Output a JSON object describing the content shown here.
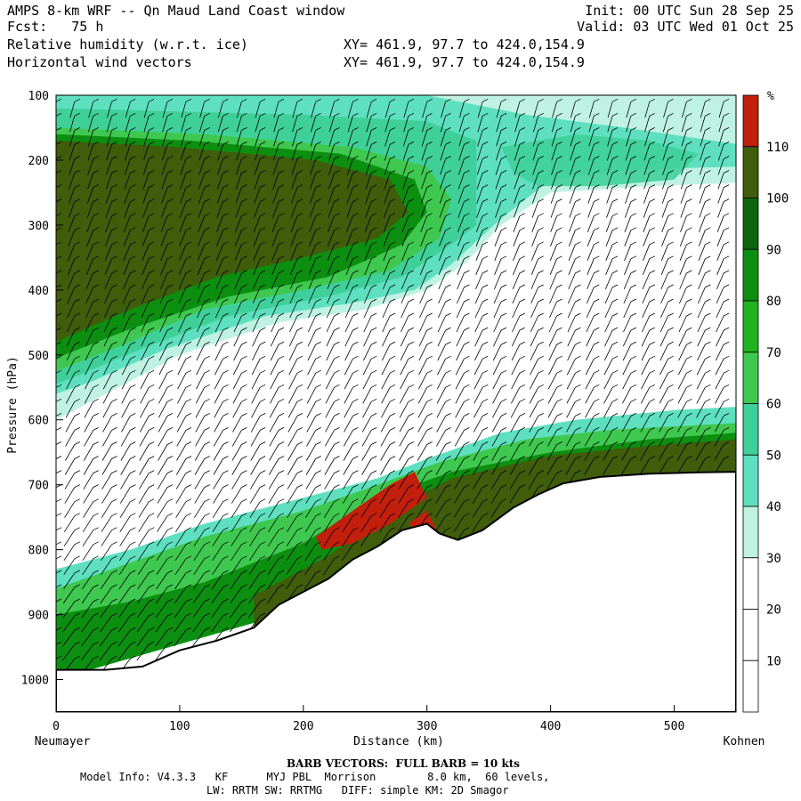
{
  "header": {
    "title": "AMPS 8-km WRF -- Qn Maud Land Coast window",
    "forecast": "Fcst:   75 h",
    "field1": "Relative humidity (w.r.t. ice)",
    "field2": "Horizontal wind vectors",
    "init": "Init: 00 UTC Sun 28 Sep 25",
    "valid": "Valid: 03 UTC Wed 01 Oct 25",
    "xy1": "XY= 461.9, 97.7 to 424.0,154.9",
    "xy2": "XY= 461.9, 97.7 to 424.0,154.9"
  },
  "chart_data": {
    "type": "heatmap",
    "title": "Relative humidity (w.r.t. ice) cross-section with horizontal wind vectors",
    "xlabel": "Distance (km)",
    "ylabel": "Pressure (hPa)",
    "x_start_label": "Neumayer",
    "x_end_label": "Kohnen",
    "xlim": [
      0,
      550
    ],
    "ylim": [
      1050,
      100
    ],
    "x_ticks": [
      0,
      100,
      200,
      300,
      400,
      500
    ],
    "y_ticks": [
      100,
      200,
      300,
      400,
      500,
      600,
      700,
      800,
      900,
      1000
    ],
    "colorbar": {
      "unit": "%",
      "levels": [
        10,
        20,
        30,
        40,
        50,
        60,
        70,
        80,
        90,
        100,
        110
      ],
      "colors": [
        "#ffffff",
        "#ffffff",
        "#ffffff",
        "#bff2e3",
        "#5ee0c0",
        "#3fd09a",
        "#3fc84f",
        "#1fb31f",
        "#0c8f10",
        "#0c660c",
        "#3f5d0b",
        "#c21f0c"
      ]
    },
    "terrain_surface_hpa": [
      [
        0,
        985
      ],
      [
        40,
        985
      ],
      [
        70,
        980
      ],
      [
        100,
        955
      ],
      [
        130,
        940
      ],
      [
        160,
        920
      ],
      [
        180,
        885
      ],
      [
        200,
        865
      ],
      [
        220,
        845
      ],
      [
        240,
        815
      ],
      [
        260,
        795
      ],
      [
        280,
        770
      ],
      [
        300,
        760
      ],
      [
        310,
        775
      ],
      [
        325,
        785
      ],
      [
        345,
        770
      ],
      [
        370,
        735
      ],
      [
        390,
        715
      ],
      [
        410,
        698
      ],
      [
        440,
        688
      ],
      [
        480,
        683
      ],
      [
        520,
        681
      ],
      [
        550,
        680
      ]
    ],
    "regions": [
      {
        "name": "upper moist layer (RH 90-110%)",
        "x_range": [
          0,
          280
        ],
        "p_range": [
          180,
          480
        ]
      },
      {
        "name": "dry mid-layer (RH < 30%)",
        "x_range": [
          20,
          550
        ],
        "p_range": [
          350,
          620
        ]
      },
      {
        "name": "low-level saturated layer (RH > 100%)",
        "x_range": [
          210,
          330
        ],
        "p_range": [
          680,
          800
        ]
      },
      {
        "name": "near-surface moist layer (RH 90-100%)",
        "x_range": [
          300,
          550
        ],
        "p_range": [
          600,
          700
        ]
      }
    ],
    "barb_columns_km": [
      0,
      15,
      30,
      45,
      60,
      75,
      90,
      105,
      120,
      135,
      150,
      165,
      180,
      195,
      210,
      225,
      240,
      255,
      270,
      285,
      300,
      315,
      330,
      345,
      360,
      375,
      390,
      405,
      420,
      435,
      450,
      465,
      480,
      495,
      510,
      525,
      540
    ],
    "barb_note": "BARB VECTORS:  FULL BARB = 10 kts"
  },
  "footer": {
    "barb_label": "BARB VECTORS:  FULL BARB = 10 kts",
    "model_line1": "Model Info: V4.3.3   KF      MYJ PBL  Morrison        8.0 km,  60 levels,",
    "model_line2": "LW: RRTM SW: RRTMG   DIFF: simple KM: 2D Smagor"
  }
}
